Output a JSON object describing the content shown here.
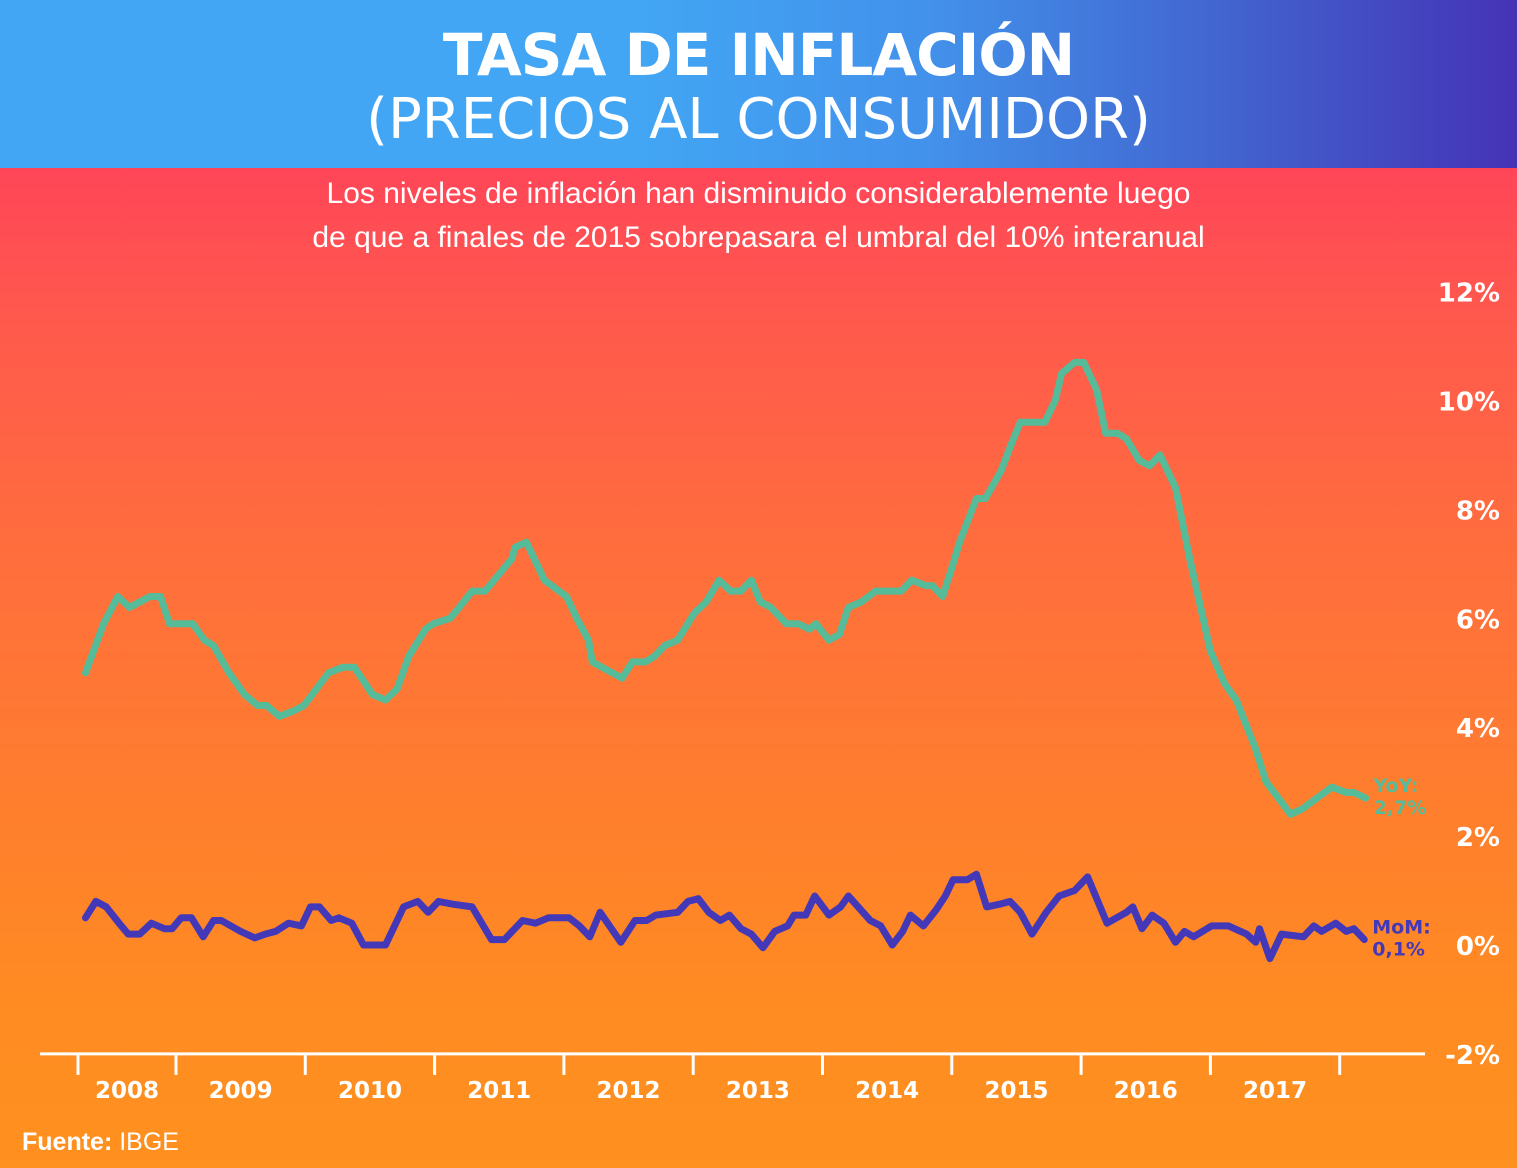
{
  "header": {
    "title": "TASA DE INFLACIÓN",
    "title_line2": "(PRECIOS AL CONSUMIDOR)"
  },
  "subtitle": {
    "line1": "Los niveles de inflación han disminuido considerablemente luego",
    "line2": "de que a finales de 2015 sobrepasara el umbral del 10% interanual"
  },
  "source": {
    "label": "Fuente:",
    "value": "IBGE"
  },
  "colors": {
    "header_left": "#42a6f4",
    "header_right": "#4533b6",
    "background_top": "#ff4658",
    "background_bottom": "#ff9120",
    "yoy_line": "#55bb99",
    "mom_line": "#4338b8",
    "axis": "#ffffff"
  },
  "chart_data": {
    "type": "line",
    "title": "TASA DE INFLACIÓN (PRECIOS AL CONSUMIDOR)",
    "xlabel": "",
    "ylabel": "",
    "x_unit": "decimal year",
    "xlim": [
      2008.0,
      2018.2
    ],
    "ylim": [
      -2,
      12
    ],
    "yticks": [
      12,
      10,
      8,
      6,
      4,
      2,
      0,
      -2
    ],
    "ytick_labels": [
      "12%",
      "10%",
      "8%",
      "6%",
      "4%",
      "2%",
      "0%",
      "-2%"
    ],
    "xtick_boundaries": [
      2008.24,
      2009,
      2010,
      2011,
      2012,
      2013,
      2014,
      2015,
      2016,
      2017,
      2018
    ],
    "xtick_labels": [
      "2008",
      "2009",
      "2010",
      "2011",
      "2012",
      "2013",
      "2014",
      "2015",
      "2016",
      "2017"
    ],
    "grid": false,
    "legend": "inline-end-labels-right",
    "series": [
      {
        "name": "YoY",
        "end_label": "YoY:",
        "end_value_label": "2,7%",
        "points": [
          [
            2008.3,
            5.0
          ],
          [
            2008.44,
            5.9
          ],
          [
            2008.55,
            6.4
          ],
          [
            2008.64,
            6.2
          ],
          [
            2008.8,
            6.4
          ],
          [
            2008.88,
            6.4
          ],
          [
            2008.95,
            5.9
          ],
          [
            2009.05,
            5.9
          ],
          [
            2009.13,
            5.9
          ],
          [
            2009.22,
            5.6
          ],
          [
            2009.29,
            5.5
          ],
          [
            2009.41,
            5.0
          ],
          [
            2009.53,
            4.6
          ],
          [
            2009.63,
            4.4
          ],
          [
            2009.7,
            4.4
          ],
          [
            2009.8,
            4.2
          ],
          [
            2009.91,
            4.3
          ],
          [
            2009.99,
            4.4
          ],
          [
            2010.18,
            5.0
          ],
          [
            2010.29,
            5.1
          ],
          [
            2010.38,
            5.1
          ],
          [
            2010.52,
            4.6
          ],
          [
            2010.62,
            4.5
          ],
          [
            2010.71,
            4.7
          ],
          [
            2010.8,
            5.3
          ],
          [
            2010.93,
            5.8
          ],
          [
            2010.99,
            5.9
          ],
          [
            2011.12,
            6.0
          ],
          [
            2011.19,
            6.2
          ],
          [
            2011.29,
            6.5
          ],
          [
            2011.39,
            6.5
          ],
          [
            2011.53,
            6.9
          ],
          [
            2011.6,
            7.1
          ],
          [
            2011.62,
            7.3
          ],
          [
            2011.71,
            7.4
          ],
          [
            2011.85,
            6.7
          ],
          [
            2012.02,
            6.4
          ],
          [
            2012.1,
            6.0
          ],
          [
            2012.19,
            5.6
          ],
          [
            2012.22,
            5.2
          ],
          [
            2012.45,
            4.9
          ],
          [
            2012.53,
            5.2
          ],
          [
            2012.63,
            5.2
          ],
          [
            2012.7,
            5.3
          ],
          [
            2012.78,
            5.5
          ],
          [
            2012.88,
            5.6
          ],
          [
            2013.01,
            6.1
          ],
          [
            2013.1,
            6.3
          ],
          [
            2013.2,
            6.7
          ],
          [
            2013.29,
            6.5
          ],
          [
            2013.37,
            6.5
          ],
          [
            2013.45,
            6.7
          ],
          [
            2013.52,
            6.3
          ],
          [
            2013.6,
            6.2
          ],
          [
            2013.72,
            5.9
          ],
          [
            2013.81,
            5.9
          ],
          [
            2013.9,
            5.8
          ],
          [
            2013.95,
            5.9
          ],
          [
            2014.05,
            5.6
          ],
          [
            2014.13,
            5.7
          ],
          [
            2014.2,
            6.2
          ],
          [
            2014.3,
            6.3
          ],
          [
            2014.41,
            6.5
          ],
          [
            2014.55,
            6.5
          ],
          [
            2014.61,
            6.5
          ],
          [
            2014.69,
            6.7
          ],
          [
            2014.8,
            6.6
          ],
          [
            2014.85,
            6.6
          ],
          [
            2014.93,
            6.4
          ],
          [
            2015.01,
            7.0
          ],
          [
            2015.06,
            7.4
          ],
          [
            2015.19,
            8.2
          ],
          [
            2015.26,
            8.2
          ],
          [
            2015.38,
            8.7
          ],
          [
            2015.46,
            9.2
          ],
          [
            2015.53,
            9.6
          ],
          [
            2015.64,
            9.6
          ],
          [
            2015.68,
            9.6
          ],
          [
            2015.72,
            9.6
          ],
          [
            2015.8,
            10.0
          ],
          [
            2015.85,
            10.5
          ],
          [
            2015.95,
            10.7
          ],
          [
            2016.02,
            10.7
          ],
          [
            2016.12,
            10.2
          ],
          [
            2016.19,
            9.4
          ],
          [
            2016.28,
            9.4
          ],
          [
            2016.35,
            9.3
          ],
          [
            2016.45,
            8.9
          ],
          [
            2016.53,
            8.8
          ],
          [
            2016.61,
            9.0
          ],
          [
            2016.73,
            8.4
          ],
          [
            2016.84,
            7.1
          ],
          [
            2017.0,
            5.4
          ],
          [
            2017.11,
            4.8
          ],
          [
            2017.2,
            4.5
          ],
          [
            2017.35,
            3.6
          ],
          [
            2017.43,
            3.0
          ],
          [
            2017.62,
            2.4
          ],
          [
            2017.71,
            2.5
          ],
          [
            2017.94,
            2.9
          ],
          [
            2018.05,
            2.8
          ],
          [
            2018.11,
            2.8
          ],
          [
            2018.2,
            2.7
          ]
        ]
      },
      {
        "name": "MoM",
        "end_label": "MoM:",
        "end_value_label": "0,1%",
        "points": [
          [
            2008.3,
            0.5
          ],
          [
            2008.38,
            0.8
          ],
          [
            2008.46,
            0.7
          ],
          [
            2008.56,
            0.4
          ],
          [
            2008.63,
            0.2
          ],
          [
            2008.72,
            0.2
          ],
          [
            2008.81,
            0.4
          ],
          [
            2008.91,
            0.3
          ],
          [
            2008.97,
            0.3
          ],
          [
            2009.04,
            0.5
          ],
          [
            2009.12,
            0.5
          ],
          [
            2009.21,
            0.15
          ],
          [
            2009.29,
            0.45
          ],
          [
            2009.35,
            0.45
          ],
          [
            2009.5,
            0.25
          ],
          [
            2009.61,
            0.13
          ],
          [
            2009.69,
            0.2
          ],
          [
            2009.77,
            0.25
          ],
          [
            2009.87,
            0.4
          ],
          [
            2009.97,
            0.35
          ],
          [
            2010.04,
            0.7
          ],
          [
            2010.11,
            0.7
          ],
          [
            2010.2,
            0.45
          ],
          [
            2010.26,
            0.5
          ],
          [
            2010.36,
            0.4
          ],
          [
            2010.45,
            0.0
          ],
          [
            2010.62,
            0.0
          ],
          [
            2010.76,
            0.7
          ],
          [
            2010.87,
            0.8
          ],
          [
            2010.95,
            0.6
          ],
          [
            2011.03,
            0.8
          ],
          [
            2011.14,
            0.75
          ],
          [
            2011.29,
            0.7
          ],
          [
            2011.44,
            0.1
          ],
          [
            2011.54,
            0.1
          ],
          [
            2011.68,
            0.45
          ],
          [
            2011.78,
            0.4
          ],
          [
            2011.88,
            0.5
          ],
          [
            2012.04,
            0.5
          ],
          [
            2012.12,
            0.35
          ],
          [
            2012.2,
            0.15
          ],
          [
            2012.28,
            0.6
          ],
          [
            2012.44,
            0.05
          ],
          [
            2012.55,
            0.45
          ],
          [
            2012.64,
            0.45
          ],
          [
            2012.71,
            0.55
          ],
          [
            2012.88,
            0.6
          ],
          [
            2012.96,
            0.8
          ],
          [
            2013.04,
            0.85
          ],
          [
            2013.12,
            0.6
          ],
          [
            2013.21,
            0.45
          ],
          [
            2013.28,
            0.55
          ],
          [
            2013.37,
            0.3
          ],
          [
            2013.45,
            0.2
          ],
          [
            2013.54,
            -0.05
          ],
          [
            2013.63,
            0.25
          ],
          [
            2013.73,
            0.35
          ],
          [
            2013.78,
            0.55
          ],
          [
            2013.87,
            0.55
          ],
          [
            2013.94,
            0.9
          ],
          [
            2014.05,
            0.55
          ],
          [
            2014.14,
            0.7
          ],
          [
            2014.2,
            0.9
          ],
          [
            2014.37,
            0.45
          ],
          [
            2014.45,
            0.35
          ],
          [
            2014.54,
            0.0
          ],
          [
            2014.62,
            0.25
          ],
          [
            2014.68,
            0.55
          ],
          [
            2014.78,
            0.35
          ],
          [
            2014.88,
            0.65
          ],
          [
            2014.95,
            0.9
          ],
          [
            2015.01,
            1.2
          ],
          [
            2015.12,
            1.2
          ],
          [
            2015.19,
            1.3
          ],
          [
            2015.27,
            0.7
          ],
          [
            2015.37,
            0.75
          ],
          [
            2015.45,
            0.8
          ],
          [
            2015.53,
            0.6
          ],
          [
            2015.62,
            0.2
          ],
          [
            2015.73,
            0.6
          ],
          [
            2015.83,
            0.9
          ],
          [
            2015.95,
            1.0
          ],
          [
            2016.05,
            1.25
          ],
          [
            2016.2,
            0.4
          ],
          [
            2016.35,
            0.6
          ],
          [
            2016.4,
            0.7
          ],
          [
            2016.47,
            0.3
          ],
          [
            2016.55,
            0.55
          ],
          [
            2016.64,
            0.4
          ],
          [
            2016.73,
            0.05
          ],
          [
            2016.8,
            0.25
          ],
          [
            2016.87,
            0.15
          ],
          [
            2017.01,
            0.35
          ],
          [
            2017.14,
            0.35
          ],
          [
            2017.28,
            0.2
          ],
          [
            2017.35,
            0.05
          ],
          [
            2017.38,
            0.3
          ],
          [
            2017.46,
            -0.25
          ],
          [
            2017.55,
            0.2
          ],
          [
            2017.72,
            0.15
          ],
          [
            2017.8,
            0.35
          ],
          [
            2017.86,
            0.25
          ],
          [
            2017.97,
            0.4
          ],
          [
            2018.05,
            0.25
          ],
          [
            2018.11,
            0.3
          ],
          [
            2018.19,
            0.1
          ]
        ]
      }
    ]
  }
}
